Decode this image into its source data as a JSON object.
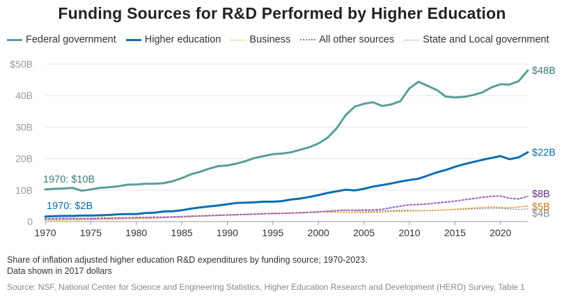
{
  "chart_data": {
    "type": "line",
    "title": "Funding Sources for R&D Performed by Higher Education",
    "xlabel": "",
    "ylabel": "",
    "xlim": [
      1970,
      2023
    ],
    "ylim": [
      0,
      50
    ],
    "x_ticks": [
      1970,
      1975,
      1980,
      1985,
      1990,
      1995,
      2000,
      2005,
      2010,
      2015,
      2020
    ],
    "y_ticks": [
      {
        "value": 0,
        "label": "0"
      },
      {
        "value": 10,
        "label": "10B"
      },
      {
        "value": 20,
        "label": "20B"
      },
      {
        "value": 30,
        "label": "30B"
      },
      {
        "value": 40,
        "label": "40B"
      },
      {
        "value": 50,
        "label": "$50B"
      }
    ],
    "grid": true,
    "legend_position": "top-left",
    "x": [
      1970,
      1971,
      1972,
      1973,
      1974,
      1975,
      1976,
      1977,
      1978,
      1979,
      1980,
      1981,
      1982,
      1983,
      1984,
      1985,
      1986,
      1987,
      1988,
      1989,
      1990,
      1991,
      1992,
      1993,
      1994,
      1995,
      1996,
      1997,
      1998,
      1999,
      2000,
      2001,
      2002,
      2003,
      2004,
      2005,
      2006,
      2007,
      2008,
      2009,
      2010,
      2011,
      2012,
      2013,
      2014,
      2015,
      2016,
      2017,
      2018,
      2019,
      2020,
      2021,
      2022,
      2023
    ],
    "series": [
      {
        "name": "Federal government",
        "color": "#5a9e98",
        "style": "solid",
        "width": 3,
        "end_label": "$48B",
        "values": [
          10.2,
          10.4,
          10.5,
          10.7,
          9.8,
          10.2,
          10.7,
          10.9,
          11.2,
          11.7,
          11.8,
          12.0,
          12.0,
          12.2,
          12.8,
          13.8,
          15.0,
          15.8,
          16.8,
          17.6,
          17.8,
          18.4,
          19.2,
          20.2,
          20.8,
          21.4,
          21.6,
          22.0,
          22.8,
          23.6,
          24.8,
          26.6,
          29.6,
          33.8,
          36.5,
          37.4,
          37.9,
          36.7,
          37.2,
          38.2,
          42.3,
          44.4,
          43.1,
          41.8,
          39.7,
          39.4,
          39.6,
          40.2,
          41.0,
          42.6,
          43.6,
          43.5,
          44.6,
          48.0
        ]
      },
      {
        "name": "Higher education",
        "color": "#0c6eb0",
        "style": "solid",
        "width": 3,
        "end_label": "$22B",
        "values": [
          1.6,
          1.7,
          1.8,
          1.8,
          1.9,
          1.9,
          2.0,
          2.1,
          2.3,
          2.4,
          2.4,
          2.7,
          2.8,
          3.2,
          3.3,
          3.6,
          4.1,
          4.5,
          4.8,
          5.1,
          5.5,
          5.9,
          6.0,
          6.1,
          6.3,
          6.3,
          6.5,
          7.0,
          7.3,
          7.8,
          8.4,
          9.1,
          9.6,
          10.1,
          9.9,
          10.4,
          11.1,
          11.6,
          12.1,
          12.7,
          13.2,
          13.6,
          14.6,
          15.6,
          16.4,
          17.4,
          18.2,
          18.9,
          19.6,
          20.2,
          20.8,
          19.8,
          20.4,
          22.0
        ]
      },
      {
        "name": "Business",
        "color": "#e49a2e",
        "style": "dotted",
        "width": 1.6,
        "end_label": "$5B",
        "values": [
          0.5,
          0.5,
          0.5,
          0.6,
          0.6,
          0.6,
          0.7,
          0.7,
          0.8,
          0.9,
          0.9,
          1.0,
          1.1,
          1.2,
          1.3,
          1.4,
          1.6,
          1.7,
          1.8,
          1.9,
          2.0,
          2.1,
          2.2,
          2.3,
          2.4,
          2.5,
          2.6,
          2.7,
          2.8,
          2.9,
          3.0,
          3.0,
          3.0,
          2.9,
          2.9,
          2.8,
          2.9,
          3.0,
          3.2,
          3.3,
          3.4,
          3.4,
          3.5,
          3.6,
          3.7,
          3.9,
          4.1,
          4.3,
          4.5,
          4.6,
          4.5,
          4.4,
          4.6,
          5.0
        ]
      },
      {
        "name": "All other sources",
        "color": "#9d6bc4",
        "style": "dotted",
        "width": 2.2,
        "end_label": "$8B",
        "values": [
          0.9,
          0.9,
          1.0,
          1.0,
          1.0,
          1.0,
          1.1,
          1.1,
          1.2,
          1.2,
          1.3,
          1.3,
          1.4,
          1.4,
          1.5,
          1.6,
          1.7,
          1.8,
          1.9,
          2.0,
          2.1,
          2.2,
          2.3,
          2.4,
          2.5,
          2.6,
          2.6,
          2.7,
          2.8,
          2.9,
          3.1,
          3.3,
          3.5,
          3.6,
          3.6,
          3.7,
          3.7,
          3.9,
          4.4,
          4.9,
          5.3,
          5.4,
          5.6,
          5.9,
          6.2,
          6.5,
          6.9,
          7.3,
          7.7,
          8.0,
          8.1,
          7.4,
          7.2,
          8.0
        ]
      },
      {
        "name": "State and Local government",
        "color": "#888888",
        "style": "dotted",
        "width": 1.2,
        "end_label": "$4B",
        "values": [
          0.6,
          0.6,
          0.7,
          0.7,
          0.7,
          0.8,
          0.8,
          0.9,
          0.9,
          1.0,
          1.0,
          1.1,
          1.2,
          1.3,
          1.4,
          1.5,
          1.7,
          1.8,
          1.9,
          2.0,
          2.1,
          2.2,
          2.3,
          2.3,
          2.4,
          2.4,
          2.5,
          2.6,
          2.7,
          2.8,
          3.0,
          3.2,
          3.4,
          3.5,
          3.4,
          3.3,
          3.3,
          3.4,
          3.5,
          3.6,
          3.6,
          3.5,
          3.5,
          3.6,
          3.7,
          3.8,
          3.9,
          4.0,
          4.1,
          4.2,
          4.2,
          4.0,
          3.9,
          4.0
        ]
      }
    ],
    "annotations": [
      {
        "text": "1970: $10B",
        "series": "Federal government",
        "color": "#3d7a77"
      },
      {
        "text": "1970: $2B",
        "series": "Higher education",
        "color": "#0c6eb0"
      }
    ],
    "end_label_colors": {
      "Federal government": "#3d7a77",
      "Higher education": "#0c6eb0",
      "All other sources": "#6a2a87",
      "Business": "#c77810",
      "State and Local government": "#888888"
    }
  },
  "note_lines": [
    "Share of inflation adjusted higher education R&D expenditures by funding source; 1970-2023.",
    "Data shown in 2017 dollars"
  ],
  "source": "Source: NSF, National Center for Science and Engineering Statistics, Higher Education Research and Development (HERD) Survey, Table 1"
}
